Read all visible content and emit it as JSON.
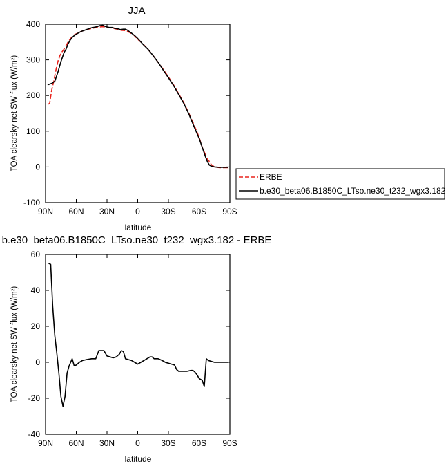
{
  "chart_data": [
    {
      "type": "line",
      "title": "JJA",
      "xlabel": "latitude",
      "ylabel": "TOA clearsky net SW flux (W/m²)",
      "xlim": [
        90,
        -90
      ],
      "ylim": [
        -100,
        400
      ],
      "x_ticks": [
        90,
        60,
        30,
        0,
        -30,
        -60,
        -90
      ],
      "x_tick_labels": [
        "90N",
        "60N",
        "30N",
        "0",
        "30S",
        "60S",
        "90S"
      ],
      "y_ticks": [
        -100,
        0,
        100,
        200,
        300,
        400
      ],
      "y_tick_labels": [
        "-100",
        "0",
        "100",
        "200",
        "300",
        "400"
      ],
      "grid": false,
      "legend_position": "right",
      "series": [
        {
          "name": "ERBE",
          "color": "#e8241d",
          "dash": "dashed",
          "points": [
            [
              88,
              175
            ],
            [
              86,
              178
            ],
            [
              84,
              215
            ],
            [
              82,
              240
            ],
            [
              80,
              270
            ],
            [
              78,
              295
            ],
            [
              76,
              312
            ],
            [
              74,
              322
            ],
            [
              72,
              330
            ],
            [
              70,
              340
            ],
            [
              68,
              350
            ],
            [
              66,
              358
            ],
            [
              64,
              365
            ],
            [
              62,
              370
            ],
            [
              60,
              373
            ],
            [
              55,
              380
            ],
            [
              50,
              385
            ],
            [
              45,
              388
            ],
            [
              40,
              391
            ],
            [
              35,
              393
            ],
            [
              30,
              392
            ],
            [
              25,
              389
            ],
            [
              20,
              386
            ],
            [
              16,
              383
            ],
            [
              12,
              382
            ],
            [
              8,
              377
            ],
            [
              4,
              370
            ],
            [
              0,
              358
            ],
            [
              -5,
              345
            ],
            [
              -10,
              330
            ],
            [
              -15,
              312
            ],
            [
              -20,
              293
            ],
            [
              -25,
              273
            ],
            [
              -30,
              252
            ],
            [
              -35,
              230
            ],
            [
              -40,
              205
            ],
            [
              -45,
              180
            ],
            [
              -50,
              150
            ],
            [
              -55,
              118
            ],
            [
              -60,
              83
            ],
            [
              -63,
              55
            ],
            [
              -66,
              35
            ],
            [
              -68,
              22
            ],
            [
              -70,
              15
            ],
            [
              -72,
              6
            ],
            [
              -75,
              0
            ],
            [
              -80,
              -2
            ],
            [
              -85,
              -2
            ],
            [
              -88,
              -2
            ]
          ]
        },
        {
          "name": "b.e30_beta06.B1850C_LTso.ne30_t232_wgx3.182",
          "color": "#000000",
          "dash": "solid",
          "points": [
            [
              88,
              230
            ],
            [
              84,
              234
            ],
            [
              81,
              240
            ],
            [
              78,
              265
            ],
            [
              75,
              295
            ],
            [
              72,
              320
            ],
            [
              70,
              330
            ],
            [
              68,
              345
            ],
            [
              66,
              355
            ],
            [
              64,
              363
            ],
            [
              62,
              368
            ],
            [
              60,
              372
            ],
            [
              55,
              380
            ],
            [
              50,
              385
            ],
            [
              45,
              390
            ],
            [
              40,
              393
            ],
            [
              37,
              396
            ],
            [
              34,
              397
            ],
            [
              31,
              393
            ],
            [
              28,
              391
            ],
            [
              25,
              391
            ],
            [
              22,
              388
            ],
            [
              19,
              387
            ],
            [
              17,
              385
            ],
            [
              14,
              386
            ],
            [
              12,
              386
            ],
            [
              10,
              383
            ],
            [
              7,
              377
            ],
            [
              3,
              368
            ],
            [
              0,
              360
            ],
            [
              -5,
              344
            ],
            [
              -10,
              330
            ],
            [
              -15,
              312
            ],
            [
              -20,
              293
            ],
            [
              -25,
              271
            ],
            [
              -30,
              250
            ],
            [
              -35,
              228
            ],
            [
              -40,
              203
            ],
            [
              -45,
              178
            ],
            [
              -50,
              148
            ],
            [
              -55,
              113
            ],
            [
              -60,
              80
            ],
            [
              -63,
              55
            ],
            [
              -66,
              30
            ],
            [
              -68,
              15
            ],
            [
              -70,
              5
            ],
            [
              -72,
              2
            ],
            [
              -75,
              0
            ],
            [
              -80,
              -1
            ],
            [
              -85,
              -1
            ],
            [
              -88,
              -1
            ]
          ]
        }
      ]
    },
    {
      "type": "line",
      "title": "b.e30_beta06.B1850C_LTso.ne30_t232_wgx3.182 - ERBE",
      "xlabel": "latitude",
      "ylabel": "TOA clearsky net SW flux (W/m²)",
      "xlim": [
        90,
        -90
      ],
      "ylim": [
        -40,
        60
      ],
      "x_ticks": [
        90,
        60,
        30,
        0,
        -30,
        -60,
        -90
      ],
      "x_tick_labels": [
        "90N",
        "60N",
        "30N",
        "0",
        "30S",
        "60S",
        "90S"
      ],
      "y_ticks": [
        -40,
        -20,
        0,
        20,
        40,
        60
      ],
      "y_tick_labels": [
        "-40",
        "-20",
        "0",
        "20",
        "40",
        "60"
      ],
      "grid": false,
      "series": [
        {
          "color": "#000000",
          "dash": "solid",
          "points": [
            [
              87,
              55
            ],
            [
              85,
              54.5
            ],
            [
              83,
              31
            ],
            [
              81,
              15
            ],
            [
              79,
              5
            ],
            [
              77,
              -6
            ],
            [
              75,
              -19
            ],
            [
              73,
              -24.5
            ],
            [
              71,
              -19
            ],
            [
              69,
              -6
            ],
            [
              67,
              -2
            ],
            [
              64,
              2
            ],
            [
              62,
              -2
            ],
            [
              60,
              -1.5
            ],
            [
              57,
              0
            ],
            [
              54,
              1
            ],
            [
              50,
              1.5
            ],
            [
              45,
              2
            ],
            [
              41,
              2
            ],
            [
              38,
              6.5
            ],
            [
              33,
              6.5
            ],
            [
              30,
              3.5
            ],
            [
              27,
              3
            ],
            [
              24,
              2.5
            ],
            [
              21,
              3
            ],
            [
              18,
              4.5
            ],
            [
              16,
              6.5
            ],
            [
              14,
              6
            ],
            [
              12,
              2
            ],
            [
              9,
              1.5
            ],
            [
              6,
              1
            ],
            [
              3,
              0
            ],
            [
              0,
              -1
            ],
            [
              -3,
              0
            ],
            [
              -6,
              1
            ],
            [
              -9,
              2
            ],
            [
              -12,
              3
            ],
            [
              -14,
              3
            ],
            [
              -16,
              2
            ],
            [
              -18,
              2
            ],
            [
              -20,
              2
            ],
            [
              -22,
              1.5
            ],
            [
              -24,
              1
            ],
            [
              -27,
              0
            ],
            [
              -30,
              -0.5
            ],
            [
              -33,
              -1
            ],
            [
              -36,
              -1.5
            ],
            [
              -38,
              -4
            ],
            [
              -40,
              -5
            ],
            [
              -43,
              -5
            ],
            [
              -45,
              -5
            ],
            [
              -48,
              -5
            ],
            [
              -52,
              -4.5
            ],
            [
              -54,
              -4.5
            ],
            [
              -56,
              -5.5
            ],
            [
              -58,
              -7
            ],
            [
              -60,
              -9
            ],
            [
              -63,
              -10
            ],
            [
              -65,
              -13.5
            ],
            [
              -67,
              2
            ],
            [
              -69,
              1
            ],
            [
              -72,
              0.5
            ],
            [
              -75,
              0
            ],
            [
              -80,
              0
            ],
            [
              -85,
              0
            ],
            [
              -88,
              0
            ]
          ]
        }
      ]
    }
  ]
}
